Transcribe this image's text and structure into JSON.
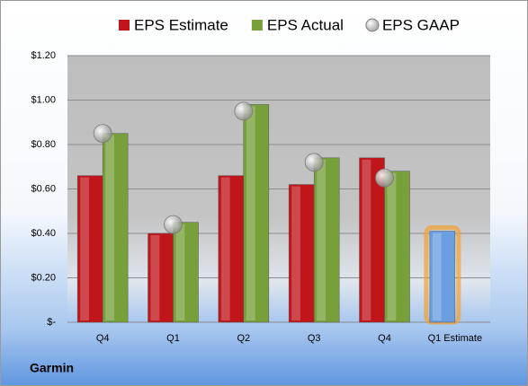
{
  "chart_data": {
    "type": "bar",
    "title": "Garmin",
    "categories": [
      "Q4",
      "Q1",
      "Q2",
      "Q3",
      "Q4",
      "Q1 Estimate"
    ],
    "series": [
      {
        "name": "EPS Estimate",
        "color": "#c0161b",
        "point_colors": [
          "#c0161b",
          "#c0161b",
          "#c0161b",
          "#c0161b",
          "#c0161b",
          "#6a9ee0"
        ],
        "values": [
          0.66,
          0.4,
          0.66,
          0.62,
          0.74,
          0.41
        ]
      },
      {
        "name": "EPS Actual",
        "color": "#77a03a",
        "values": [
          0.85,
          0.45,
          0.98,
          0.74,
          0.68,
          null
        ]
      },
      {
        "name": "EPS GAAP",
        "color": "#a8a8a8",
        "marker": "circle",
        "values": [
          0.85,
          0.44,
          0.95,
          0.72,
          0.65,
          null
        ]
      }
    ],
    "ylim": [
      0,
      1.2
    ],
    "yticks": [
      {
        "value": 0,
        "label": "$-"
      },
      {
        "value": 0.2,
        "label": "$0.20"
      },
      {
        "value": 0.4,
        "label": "$0.40"
      },
      {
        "value": 0.6,
        "label": "$0.60"
      },
      {
        "value": 0.8,
        "label": "$0.80"
      },
      {
        "value": 1.0,
        "label": "$1.00"
      },
      {
        "value": 1.2,
        "label": "$1.20"
      }
    ],
    "grid": true,
    "legend": "top"
  }
}
